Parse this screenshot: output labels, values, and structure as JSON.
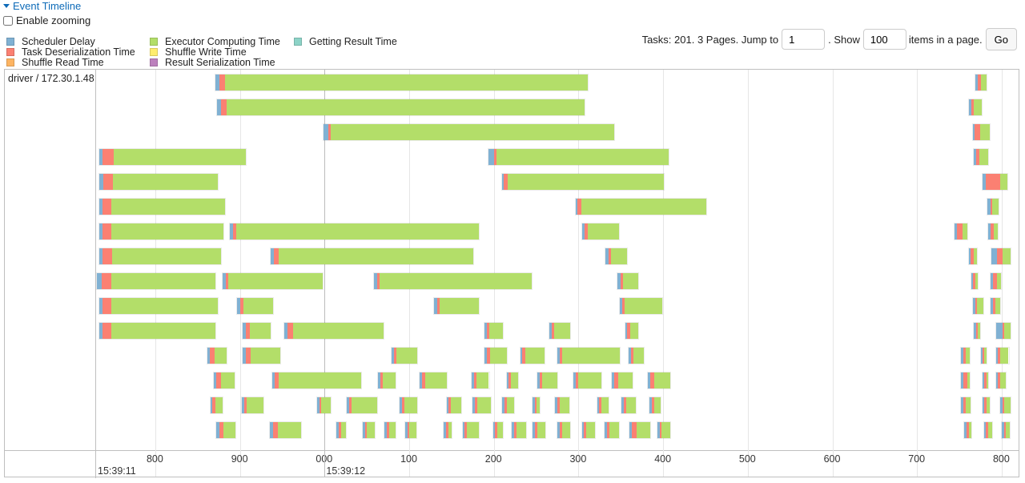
{
  "header": {
    "title": "Event Timeline"
  },
  "zoom": {
    "label": "Enable zooming"
  },
  "legend": [
    {
      "label": "Scheduler Delay",
      "color": "#80b1d3"
    },
    {
      "label": "Task Deserialization Time",
      "color": "#fb8072"
    },
    {
      "label": "Shuffle Read Time",
      "color": "#fdb462"
    },
    {
      "label": "Executor Computing Time",
      "color": "#b3de69"
    },
    {
      "label": "Shuffle Write Time",
      "color": "#ffed6f"
    },
    {
      "label": "Result Serialization Time",
      "color": "#bc80bd"
    },
    {
      "label": "Getting Result Time",
      "color": "#8dd3c7"
    }
  ],
  "pager": {
    "tasks_text": "Tasks: 201. 3 Pages. Jump to",
    "page_value": "1",
    "show_text": ". Show",
    "size_value": "100",
    "suffix_text": "items in a page.",
    "go_label": "Go"
  },
  "timeline": {
    "group_label": "driver / 172.30.1.48",
    "axis": {
      "minor": [
        {
          "label": "800",
          "t": 800
        },
        {
          "label": "900",
          "t": 900
        },
        {
          "label": "000",
          "t": 1000
        },
        {
          "label": "100",
          "t": 1100
        },
        {
          "label": "200",
          "t": 1200
        },
        {
          "label": "300",
          "t": 1300
        },
        {
          "label": "400",
          "t": 1400
        },
        {
          "label": "500",
          "t": 1500
        },
        {
          "label": "600",
          "t": 1600
        },
        {
          "label": "700",
          "t": 1700
        },
        {
          "label": "800",
          "t": 1800
        }
      ],
      "major": [
        {
          "label": "15:39:11",
          "t": 730
        },
        {
          "label": "15:39:12",
          "t": 1000
        }
      ]
    },
    "tasks": [
      {
        "row": 0,
        "start": 870,
        "end": 1312,
        "sd": 5,
        "td": 6
      },
      {
        "row": 0,
        "start": 1768,
        "end": 1783,
        "sd": 3,
        "td": 4
      },
      {
        "row": 1,
        "start": 872,
        "end": 1308,
        "sd": 5,
        "td": 6
      },
      {
        "row": 1,
        "start": 1760,
        "end": 1777,
        "sd": 3,
        "td": 4
      },
      {
        "row": 2,
        "start": 998,
        "end": 1343,
        "sd": 5,
        "td": 3
      },
      {
        "row": 2,
        "start": 1765,
        "end": 1787,
        "sd": 2,
        "td": 7
      },
      {
        "row": 3,
        "start": 733,
        "end": 908,
        "sd": 4,
        "td": 13
      },
      {
        "row": 3,
        "start": 1193,
        "end": 1407,
        "sd": 6,
        "td": 3
      },
      {
        "row": 3,
        "start": 1766,
        "end": 1785,
        "sd": 3,
        "td": 4
      },
      {
        "row": 4,
        "start": 733,
        "end": 875,
        "sd": 5,
        "td": 11
      },
      {
        "row": 4,
        "start": 1209,
        "end": 1402,
        "sd": 2,
        "td": 4
      },
      {
        "row": 4,
        "start": 1776,
        "end": 1808,
        "sd": 4,
        "td": 19
      },
      {
        "row": 5,
        "start": 733,
        "end": 883,
        "sd": 4,
        "td": 10
      },
      {
        "row": 5,
        "start": 1296,
        "end": 1452,
        "sd": 2,
        "td": 4
      },
      {
        "row": 5,
        "start": 1782,
        "end": 1797,
        "sd": 4,
        "td": 3
      },
      {
        "row": 6,
        "start": 733,
        "end": 881,
        "sd": 4,
        "td": 10
      },
      {
        "row": 6,
        "start": 887,
        "end": 1183,
        "sd": 4,
        "td": 4
      },
      {
        "row": 6,
        "start": 1303,
        "end": 1349,
        "sd": 3,
        "td": 4
      },
      {
        "row": 6,
        "start": 1743,
        "end": 1760,
        "sd": 3,
        "td": 8
      },
      {
        "row": 6,
        "start": 1783,
        "end": 1796,
        "sd": 3,
        "td": 5
      },
      {
        "row": 7,
        "start": 733,
        "end": 879,
        "sd": 4,
        "td": 11
      },
      {
        "row": 7,
        "start": 935,
        "end": 1177,
        "sd": 4,
        "td": 6
      },
      {
        "row": 7,
        "start": 1331,
        "end": 1358,
        "sd": 4,
        "td": 3
      },
      {
        "row": 7,
        "start": 1760,
        "end": 1772,
        "sd": 3,
        "td": 4
      },
      {
        "row": 7,
        "start": 1787,
        "end": 1811,
        "sd": 7,
        "td": 7
      },
      {
        "row": 8,
        "start": 730,
        "end": 872,
        "sd": 6,
        "td": 11
      },
      {
        "row": 8,
        "start": 879,
        "end": 999,
        "sd": 3,
        "td": 3
      },
      {
        "row": 8,
        "start": 1057,
        "end": 1246,
        "sd": 4,
        "td": 3
      },
      {
        "row": 8,
        "start": 1345,
        "end": 1371,
        "sd": 4,
        "td": 3
      },
      {
        "row": 8,
        "start": 1763,
        "end": 1773,
        "sd": 3,
        "td": 3
      },
      {
        "row": 8,
        "start": 1786,
        "end": 1800,
        "sd": 3,
        "td": 6
      },
      {
        "row": 9,
        "start": 733,
        "end": 875,
        "sd": 4,
        "td": 10
      },
      {
        "row": 9,
        "start": 896,
        "end": 940,
        "sd": 4,
        "td": 3
      },
      {
        "row": 9,
        "start": 1128,
        "end": 1183,
        "sd": 4,
        "td": 3
      },
      {
        "row": 9,
        "start": 1348,
        "end": 1400,
        "sd": 3,
        "td": 3
      },
      {
        "row": 9,
        "start": 1765,
        "end": 1779,
        "sd": 3,
        "td": 3
      },
      {
        "row": 9,
        "start": 1786,
        "end": 1799,
        "sd": 3,
        "td": 3
      },
      {
        "row": 10,
        "start": 733,
        "end": 872,
        "sd": 4,
        "td": 10
      },
      {
        "row": 10,
        "start": 902,
        "end": 937,
        "sd": 4,
        "td": 5
      },
      {
        "row": 10,
        "start": 951,
        "end": 1071,
        "sd": 4,
        "td": 7
      },
      {
        "row": 10,
        "start": 1188,
        "end": 1212,
        "sd": 3,
        "td": 3
      },
      {
        "row": 10,
        "start": 1265,
        "end": 1291,
        "sd": 3,
        "td": 3
      },
      {
        "row": 10,
        "start": 1354,
        "end": 1371,
        "sd": 3,
        "td": 4
      },
      {
        "row": 10,
        "start": 1766,
        "end": 1775,
        "sd": 3,
        "td": 3
      },
      {
        "row": 10,
        "start": 1792,
        "end": 1811,
        "sd": 9,
        "td": 2
      },
      {
        "row": 11,
        "start": 861,
        "end": 885,
        "sd": 3,
        "td": 6
      },
      {
        "row": 11,
        "start": 902,
        "end": 949,
        "sd": 4,
        "td": 6
      },
      {
        "row": 11,
        "start": 1078,
        "end": 1110,
        "sd": 3,
        "td": 3
      },
      {
        "row": 11,
        "start": 1188,
        "end": 1216,
        "sd": 3,
        "td": 4
      },
      {
        "row": 11,
        "start": 1230,
        "end": 1261,
        "sd": 3,
        "td": 4
      },
      {
        "row": 11,
        "start": 1274,
        "end": 1350,
        "sd": 3,
        "td": 3
      },
      {
        "row": 11,
        "start": 1358,
        "end": 1378,
        "sd": 3,
        "td": 4
      },
      {
        "row": 11,
        "start": 1751,
        "end": 1763,
        "sd": 3,
        "td": 3
      },
      {
        "row": 11,
        "start": 1774,
        "end": 1783,
        "sd": 3,
        "td": 3
      },
      {
        "row": 11,
        "start": 1792,
        "end": 1809,
        "sd": 3,
        "td": 3
      },
      {
        "row": 12,
        "start": 868,
        "end": 895,
        "sd": 3,
        "td": 6
      },
      {
        "row": 12,
        "start": 937,
        "end": 1044,
        "sd": 3,
        "td": 5
      },
      {
        "row": 12,
        "start": 1062,
        "end": 1085,
        "sd": 3,
        "td": 3
      },
      {
        "row": 12,
        "start": 1111,
        "end": 1145,
        "sd": 3,
        "td": 4
      },
      {
        "row": 12,
        "start": 1173,
        "end": 1195,
        "sd": 3,
        "td": 3
      },
      {
        "row": 12,
        "start": 1214,
        "end": 1230,
        "sd": 3,
        "td": 3
      },
      {
        "row": 12,
        "start": 1250,
        "end": 1276,
        "sd": 3,
        "td": 4
      },
      {
        "row": 12,
        "start": 1293,
        "end": 1328,
        "sd": 3,
        "td": 3
      },
      {
        "row": 12,
        "start": 1338,
        "end": 1365,
        "sd": 3,
        "td": 6
      },
      {
        "row": 12,
        "start": 1381,
        "end": 1409,
        "sd": 3,
        "td": 5
      },
      {
        "row": 12,
        "start": 1751,
        "end": 1763,
        "sd": 3,
        "td": 6
      },
      {
        "row": 12,
        "start": 1776,
        "end": 1785,
        "sd": 3,
        "td": 3
      },
      {
        "row": 12,
        "start": 1792,
        "end": 1806,
        "sd": 3,
        "td": 3
      },
      {
        "row": 13,
        "start": 864,
        "end": 880,
        "sd": 3,
        "td": 4
      },
      {
        "row": 13,
        "start": 901,
        "end": 929,
        "sd": 3,
        "td": 3
      },
      {
        "row": 13,
        "start": 990,
        "end": 1008,
        "sd": 3,
        "td": 2
      },
      {
        "row": 13,
        "start": 1025,
        "end": 1063,
        "sd": 3,
        "td": 3
      },
      {
        "row": 13,
        "start": 1088,
        "end": 1110,
        "sd": 3,
        "td": 3
      },
      {
        "row": 13,
        "start": 1143,
        "end": 1162,
        "sd": 3,
        "td": 3
      },
      {
        "row": 13,
        "start": 1174,
        "end": 1197,
        "sd": 3,
        "td": 3
      },
      {
        "row": 13,
        "start": 1209,
        "end": 1225,
        "sd": 3,
        "td": 3
      },
      {
        "row": 13,
        "start": 1245,
        "end": 1255,
        "sd": 3,
        "td": 3
      },
      {
        "row": 13,
        "start": 1271,
        "end": 1290,
        "sd": 3,
        "td": 3
      },
      {
        "row": 13,
        "start": 1321,
        "end": 1336,
        "sd": 3,
        "td": 3
      },
      {
        "row": 13,
        "start": 1350,
        "end": 1369,
        "sd": 3,
        "td": 3
      },
      {
        "row": 13,
        "start": 1383,
        "end": 1398,
        "sd": 3,
        "td": 3
      },
      {
        "row": 13,
        "start": 1751,
        "end": 1764,
        "sd": 3,
        "td": 3
      },
      {
        "row": 13,
        "start": 1776,
        "end": 1787,
        "sd": 3,
        "td": 3
      },
      {
        "row": 13,
        "start": 1797,
        "end": 1811,
        "sd": 3,
        "td": 3
      },
      {
        "row": 14,
        "start": 871,
        "end": 896,
        "sd": 4,
        "td": 5
      },
      {
        "row": 14,
        "start": 934,
        "end": 973,
        "sd": 4,
        "td": 6
      },
      {
        "row": 14,
        "start": 1013,
        "end": 1026,
        "sd": 3,
        "td": 3
      },
      {
        "row": 14,
        "start": 1044,
        "end": 1060,
        "sd": 3,
        "td": 3
      },
      {
        "row": 14,
        "start": 1070,
        "end": 1085,
        "sd": 3,
        "td": 3
      },
      {
        "row": 14,
        "start": 1094,
        "end": 1109,
        "sd": 3,
        "td": 3
      },
      {
        "row": 14,
        "start": 1140,
        "end": 1151,
        "sd": 3,
        "td": 3
      },
      {
        "row": 14,
        "start": 1162,
        "end": 1183,
        "sd": 3,
        "td": 3
      },
      {
        "row": 14,
        "start": 1198,
        "end": 1212,
        "sd": 3,
        "td": 3
      },
      {
        "row": 14,
        "start": 1220,
        "end": 1239,
        "sd": 3,
        "td": 3
      },
      {
        "row": 14,
        "start": 1245,
        "end": 1262,
        "sd": 3,
        "td": 3
      },
      {
        "row": 14,
        "start": 1274,
        "end": 1291,
        "sd": 3,
        "td": 3
      },
      {
        "row": 14,
        "start": 1303,
        "end": 1320,
        "sd": 3,
        "td": 3
      },
      {
        "row": 14,
        "start": 1330,
        "end": 1349,
        "sd": 3,
        "td": 3
      },
      {
        "row": 14,
        "start": 1359,
        "end": 1386,
        "sd": 3,
        "td": 6
      },
      {
        "row": 14,
        "start": 1392,
        "end": 1409,
        "sd": 3,
        "td": 3
      },
      {
        "row": 14,
        "start": 1755,
        "end": 1765,
        "sd": 3,
        "td": 3
      },
      {
        "row": 14,
        "start": 1778,
        "end": 1790,
        "sd": 3,
        "td": 3
      },
      {
        "row": 14,
        "start": 1799,
        "end": 1810,
        "sd": 3,
        "td": 3
      }
    ]
  }
}
